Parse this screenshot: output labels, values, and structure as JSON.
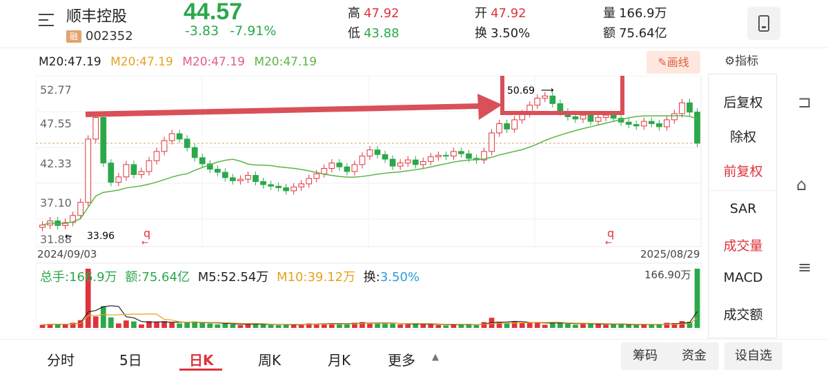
{
  "stock": {
    "name": "顺丰控股",
    "badge": "融",
    "code": "002352",
    "price": "44.57",
    "change": "-3.83",
    "change_pct": "-7.91%"
  },
  "stats": {
    "high_label": "高",
    "high": "47.92",
    "low_label": "低",
    "low": "43.88",
    "open_label": "开",
    "open": "47.92",
    "turnover_label": "换",
    "turnover": "3.50%",
    "volume_label": "量",
    "volume": "166.9万",
    "amount_label": "额",
    "amount": "75.64亿"
  },
  "ma_legend": [
    "M20:47.19",
    "M20:47.19",
    "M20:47.19",
    "M20:47.19"
  ],
  "draw_button": "画线",
  "indicator_button": "指标",
  "price_axis": [
    "52.77",
    "47.55",
    "42.33",
    "37.10",
    "31.88"
  ],
  "date_start": "2024/09/03",
  "date_end": "2025/08/29",
  "annotations": {
    "high_label": "50.69",
    "low_label": "33.96"
  },
  "volume_info": {
    "total": "总手:166.9万",
    "amount": "额:75.64亿",
    "m5": "M5:52.54万",
    "m10": "M10:39.12万",
    "turnover_prefix": "换:",
    "turnover_value": "3.50%",
    "max_label": "166.90万"
  },
  "side_menu": [
    "后复权",
    "除权",
    "前复权",
    "SAR",
    "成交量",
    "MACD",
    "成交额"
  ],
  "tabs": [
    "分时",
    "5日",
    "日K",
    "周K",
    "月K",
    "更多"
  ],
  "bottom_buttons": [
    "筹码",
    "资金",
    "设自选"
  ],
  "colors": {
    "up": "#e0323c",
    "down": "#2aa84a",
    "ma_line": "#5bb445",
    "ma_orange": "#e6a21f",
    "ma_pink": "#e55b86",
    "annotation": "#d95058"
  },
  "chart_data": {
    "type": "candlestick",
    "date_range": [
      "2024/09/03",
      "2025/08/29"
    ],
    "ylim": [
      31.88,
      52.77
    ],
    "closes": [
      33.96,
      34.5,
      33.9,
      34.3,
      35.2,
      36.9,
      45.1,
      47.9,
      42.0,
      39.5,
      40.2,
      41.8,
      40.5,
      40.9,
      42.3,
      43.5,
      44.9,
      45.8,
      45.1,
      44.0,
      42.7,
      41.9,
      41.2,
      40.8,
      40.1,
      39.7,
      39.9,
      40.4,
      39.6,
      39.2,
      39.0,
      38.8,
      38.4,
      38.9,
      39.3,
      40.0,
      40.6,
      41.3,
      42.0,
      41.5,
      40.9,
      41.8,
      42.9,
      43.7,
      43.1,
      42.5,
      41.6,
      42.0,
      42.4,
      41.8,
      42.2,
      42.8,
      43.0,
      42.9,
      43.5,
      43.2,
      42.6,
      42.4,
      43.5,
      45.9,
      47.1,
      46.4,
      47.6,
      48.4,
      49.5,
      50.4,
      50.69,
      49.7,
      48.6,
      48.0,
      47.7,
      48.2,
      47.4,
      47.9,
      48.2,
      47.8,
      47.3,
      47.0,
      46.8,
      47.4,
      47.1,
      46.7,
      47.6,
      48.4,
      49.8,
      48.6,
      44.57
    ],
    "volume_max": "166.90万",
    "volume_last": "166.9万"
  }
}
